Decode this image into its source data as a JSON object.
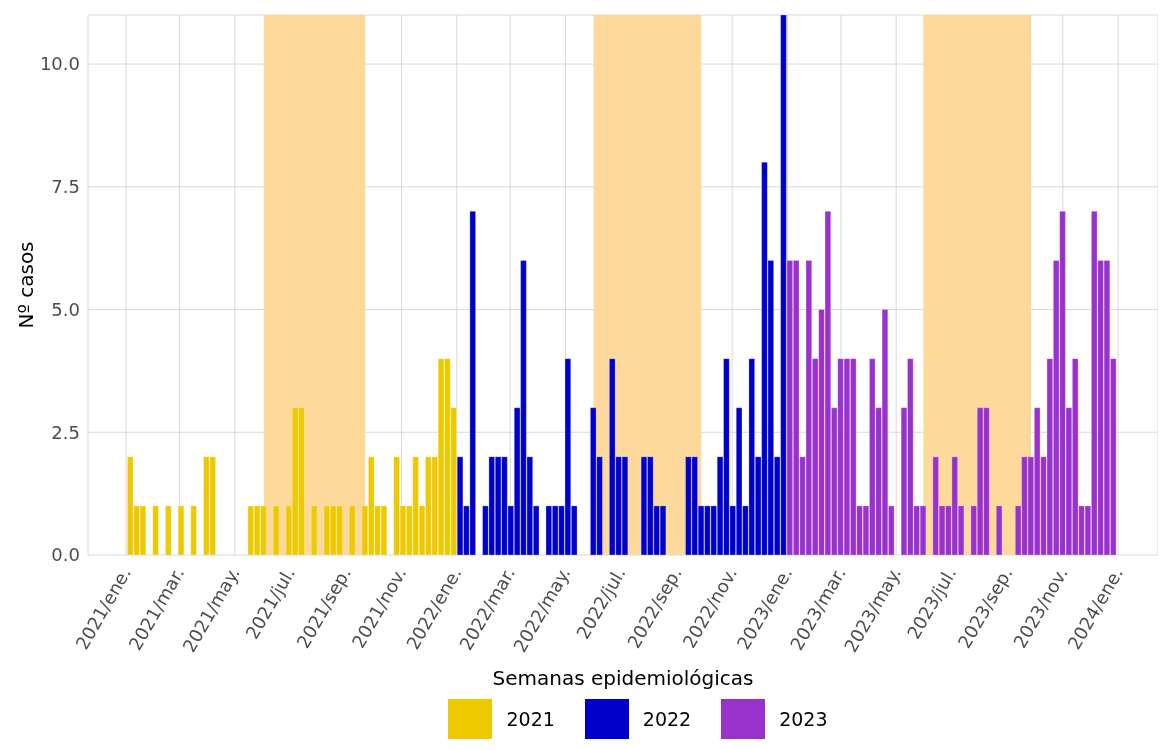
{
  "chart_data": {
    "type": "bar",
    "xlabel": "Semanas epidemiológicas",
    "ylabel": "Nº casos",
    "xlim": [
      "2020-11-20",
      "2024-02-14"
    ],
    "xticks": [
      {
        "value": "2021-01-01",
        "label": "2021/ene."
      },
      {
        "value": "2021-03-01",
        "label": "2021/mar."
      },
      {
        "value": "2021-05-01",
        "label": "2021/may."
      },
      {
        "value": "2021-07-01",
        "label": "2021/jul."
      },
      {
        "value": "2021-09-01",
        "label": "2021/sep."
      },
      {
        "value": "2021-11-01",
        "label": "2021/nov."
      },
      {
        "value": "2022-01-01",
        "label": "2022/ene."
      },
      {
        "value": "2022-03-01",
        "label": "2022/mar."
      },
      {
        "value": "2022-05-01",
        "label": "2022/may."
      },
      {
        "value": "2022-07-01",
        "label": "2022/jul."
      },
      {
        "value": "2022-09-01",
        "label": "2022/sep."
      },
      {
        "value": "2022-11-01",
        "label": "2022/nov."
      },
      {
        "value": "2023-01-01",
        "label": "2023/ene."
      },
      {
        "value": "2023-03-01",
        "label": "2023/mar."
      },
      {
        "value": "2023-05-01",
        "label": "2023/may."
      },
      {
        "value": "2023-07-01",
        "label": "2023/jul."
      },
      {
        "value": "2023-09-01",
        "label": "2023/sep."
      },
      {
        "value": "2023-11-01",
        "label": "2023/nov."
      },
      {
        "value": "2024-01-01",
        "label": "2024/ene."
      }
    ],
    "ylim": [
      0,
      11
    ],
    "yticks": [
      {
        "value": 0,
        "label": "0.0"
      },
      2.5,
      {
        "value": 5,
        "label": "5.0"
      },
      7.5,
      {
        "value": 10,
        "label": "10.0"
      }
    ],
    "grid": true,
    "legend": "bottom",
    "bands": [
      {
        "axis": "x",
        "from": "2021-06-02",
        "to": "2021-09-22",
        "color": "#fdd99b"
      },
      {
        "axis": "x",
        "from": "2022-06-01",
        "to": "2022-09-28",
        "color": "#fdd99b"
      },
      {
        "axis": "x",
        "from": "2023-05-31",
        "to": "2023-09-27",
        "color": "#fdd99b"
      }
    ],
    "series": [
      {
        "name": "2021",
        "color": "#eec900",
        "x": [
          "2021-01-06",
          "2021-01-13",
          "2021-01-20",
          "2021-01-27",
          "2021-02-03",
          "2021-02-10",
          "2021-02-17",
          "2021-02-24",
          "2021-03-03",
          "2021-03-10",
          "2021-03-17",
          "2021-03-24",
          "2021-03-31",
          "2021-04-07",
          "2021-04-14",
          "2021-04-21",
          "2021-04-28",
          "2021-05-05",
          "2021-05-12",
          "2021-05-19",
          "2021-05-26",
          "2021-06-02",
          "2021-06-09",
          "2021-06-16",
          "2021-06-23",
          "2021-06-30",
          "2021-07-07",
          "2021-07-14",
          "2021-07-21",
          "2021-07-28",
          "2021-08-04",
          "2021-08-11",
          "2021-08-18",
          "2021-08-25",
          "2021-09-01",
          "2021-09-08",
          "2021-09-15",
          "2021-09-22",
          "2021-09-29",
          "2021-10-06",
          "2021-10-13",
          "2021-10-20",
          "2021-10-27",
          "2021-11-03",
          "2021-11-10",
          "2021-11-17",
          "2021-11-24",
          "2021-12-01",
          "2021-12-08",
          "2021-12-15",
          "2021-12-22",
          "2021-12-29"
        ],
        "values": [
          2,
          1,
          1,
          0,
          1,
          0,
          1,
          0,
          1,
          0,
          1,
          0,
          2,
          2,
          0,
          0,
          0,
          0,
          0,
          1,
          1,
          1,
          0,
          1,
          0,
          1,
          3,
          3,
          0,
          1,
          0,
          1,
          1,
          1,
          0,
          1,
          0,
          1,
          2,
          1,
          1,
          0,
          2,
          1,
          1,
          2,
          1,
          2,
          2,
          4,
          4,
          3
        ]
      },
      {
        "name": "2022",
        "color": "#0000cd",
        "x": [
          "2022-01-05",
          "2022-01-12",
          "2022-01-19",
          "2022-01-26",
          "2022-02-02",
          "2022-02-09",
          "2022-02-16",
          "2022-02-23",
          "2022-03-02",
          "2022-03-09",
          "2022-03-16",
          "2022-03-23",
          "2022-03-30",
          "2022-04-06",
          "2022-04-13",
          "2022-04-20",
          "2022-04-27",
          "2022-05-04",
          "2022-05-11",
          "2022-05-18",
          "2022-05-25",
          "2022-06-01",
          "2022-06-08",
          "2022-06-15",
          "2022-06-22",
          "2022-06-29",
          "2022-07-06",
          "2022-07-13",
          "2022-07-20",
          "2022-07-27",
          "2022-08-03",
          "2022-08-10",
          "2022-08-17",
          "2022-08-24",
          "2022-08-31",
          "2022-09-07",
          "2022-09-14",
          "2022-09-21",
          "2022-09-28",
          "2022-10-05",
          "2022-10-12",
          "2022-10-19",
          "2022-10-26",
          "2022-11-02",
          "2022-11-09",
          "2022-11-16",
          "2022-11-23",
          "2022-11-30",
          "2022-12-07",
          "2022-12-14",
          "2022-12-21",
          "2022-12-28"
        ],
        "values": [
          2,
          1,
          7,
          0,
          1,
          2,
          2,
          2,
          1,
          3,
          6,
          2,
          1,
          0,
          1,
          1,
          1,
          4,
          1,
          0,
          0,
          3,
          2,
          0,
          4,
          2,
          2,
          0,
          0,
          2,
          2,
          1,
          1,
          0,
          0,
          0,
          2,
          2,
          1,
          1,
          1,
          2,
          4,
          1,
          3,
          1,
          4,
          2,
          8,
          6,
          2,
          11
        ]
      },
      {
        "name": "2023",
        "color": "#9932cc",
        "x": [
          "2023-01-04",
          "2023-01-11",
          "2023-01-18",
          "2023-01-25",
          "2023-02-01",
          "2023-02-08",
          "2023-02-15",
          "2023-02-22",
          "2023-03-01",
          "2023-03-08",
          "2023-03-15",
          "2023-03-22",
          "2023-03-29",
          "2023-04-05",
          "2023-04-12",
          "2023-04-19",
          "2023-04-26",
          "2023-05-03",
          "2023-05-10",
          "2023-05-17",
          "2023-05-24",
          "2023-05-31",
          "2023-06-07",
          "2023-06-14",
          "2023-06-21",
          "2023-06-28",
          "2023-07-05",
          "2023-07-12",
          "2023-07-19",
          "2023-07-26",
          "2023-08-02",
          "2023-08-09",
          "2023-08-16",
          "2023-08-23",
          "2023-08-30",
          "2023-09-06",
          "2023-09-13",
          "2023-09-20",
          "2023-09-27",
          "2023-10-04",
          "2023-10-11",
          "2023-10-18",
          "2023-10-25",
          "2023-11-01",
          "2023-11-08",
          "2023-11-15",
          "2023-11-22",
          "2023-11-29",
          "2023-12-06",
          "2023-12-13",
          "2023-12-20",
          "2023-12-27"
        ],
        "values": [
          6,
          6,
          2,
          6,
          4,
          5,
          7,
          3,
          4,
          4,
          4,
          1,
          1,
          4,
          3,
          5,
          1,
          0,
          3,
          4,
          1,
          1,
          0,
          2,
          1,
          1,
          2,
          1,
          0,
          1,
          3,
          3,
          0,
          1,
          0,
          0,
          1,
          2,
          2,
          3,
          2,
          4,
          6,
          7,
          3,
          4,
          1,
          1,
          7,
          6,
          6,
          4
        ]
      }
    ]
  }
}
